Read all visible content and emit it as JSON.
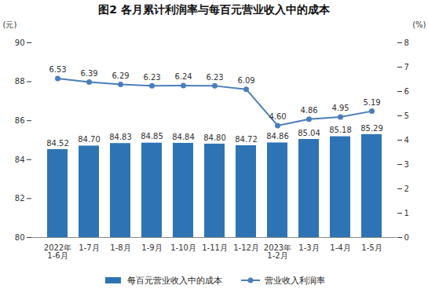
{
  "chart_data": {
    "type": "bar",
    "title": "图2 各月累计利润率与每百元营业收入中的成本",
    "categories": [
      "2022年\n1-6月",
      "1-7月",
      "1-8月",
      "1-9月",
      "1-10月",
      "1-11月",
      "1-12月",
      "2023年\n1-2月",
      "1-3月",
      "1-4月",
      "1-5月"
    ],
    "series": [
      {
        "name": "每百元营业收入中的成本",
        "type": "bar",
        "color": "#2e74b5",
        "values": [
          84.52,
          84.7,
          84.83,
          84.85,
          84.84,
          84.8,
          84.72,
          84.86,
          85.04,
          85.18,
          85.29
        ],
        "value_labels": [
          "84.52",
          "84.70",
          "84.83",
          "84.85",
          "84.84",
          "84.80",
          "84.72",
          "84.86",
          "85.04",
          "85.18",
          "85.29"
        ]
      },
      {
        "name": "营业收入利润率",
        "type": "line",
        "axis": "y2",
        "color": "#4a7ebb",
        "marker": "circle",
        "values": [
          6.53,
          6.39,
          6.29,
          6.23,
          6.24,
          6.23,
          6.09,
          4.6,
          4.86,
          4.95,
          5.19
        ],
        "value_labels": [
          "6.53",
          "6.39",
          "6.29",
          "6.23",
          "6.24",
          "6.23",
          "6.09",
          "4.60",
          "4.86",
          "4.95",
          "5.19"
        ]
      }
    ],
    "y_label": "(元)",
    "y2_label": "(%)",
    "ylim": [
      80,
      90
    ],
    "yticks": [
      80,
      82,
      84,
      86,
      88,
      90
    ],
    "y2lim": [
      0,
      8
    ],
    "y2ticks": [
      0,
      1,
      2,
      3,
      4,
      5,
      6,
      7,
      8
    ],
    "data_labels": true,
    "grid": false,
    "legend": "bottom"
  }
}
